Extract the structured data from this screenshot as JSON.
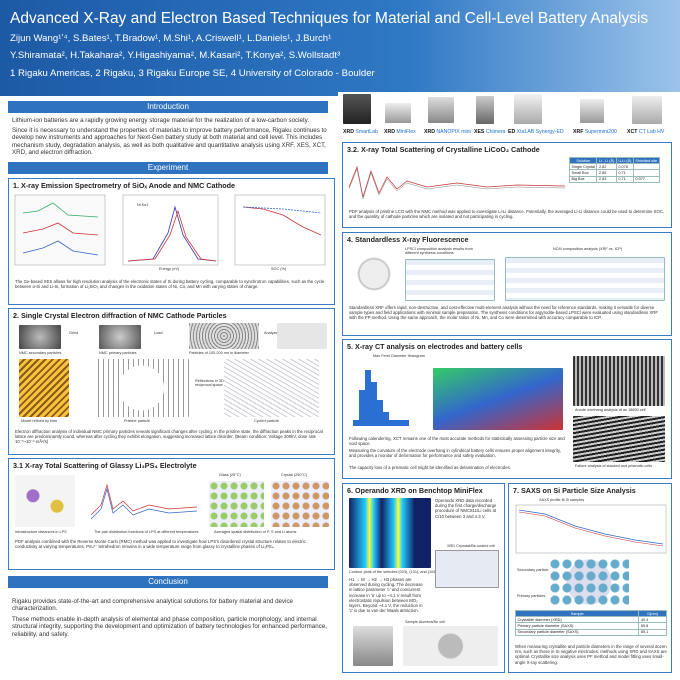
{
  "header": {
    "title": "Advanced X-Ray and Electron Based Techniques for Material and Cell-Level Battery Analysis",
    "authors": [
      "Zijun Wang¹ʼ⁴, S.Bates¹, T.Bradow¹, M.Shi¹, A.Criswell¹, L.Daniels¹, J.Burch¹",
      "Y.Shiramata², H.Takahara², Y.Higashiyama², M.Kasari², T.Konya², S.Wollstadt³"
    ],
    "affiliations": "1 Rigaku Americas, 2 Rigaku, 3 Rigaku Europe SE, 4 University of Colorado - Boulder"
  },
  "instruments": [
    {
      "kind": "XRD",
      "name": "SmartLab"
    },
    {
      "kind": "XRD",
      "name": "MiniFlex"
    },
    {
      "kind": "XRD",
      "name": "NANOPIX mini"
    },
    {
      "kind": "XES",
      "name": "Chimera"
    },
    {
      "kind": "ED",
      "name": "XtaLAB Synergy-ED"
    },
    {
      "kind": "XRF",
      "name": "Supermini200"
    },
    {
      "kind": "XCT",
      "name": "CT Lab HV"
    }
  ],
  "introduction": {
    "heading": "Introduction",
    "paragraphs": [
      "Lithium-ion batteries are a rapidly growing energy storage material for the realization of a low-carbon society.",
      "Since it is necessary to understand the properties of materials to improve battery performance, Rigaku continues to develop new instruments and approaches for Next-Gen battery study at both material and cell level. This includes mechanism study, degradation analysis, as well as both qualitative and quantitative analysis using XRF, XES, XCT, XRD, and electron diffraction."
    ]
  },
  "experiment": {
    "heading": "Experiment"
  },
  "sections": [
    {
      "title": "1. X-ray Emission Spectrometry of SiOₓ Anode and NMC Cathode",
      "labels": [
        "Ni Kα1",
        "Energy (eV)",
        "SOC (%)"
      ],
      "caption": "The Ge-based XES allows for high resolution analysis of the electronic states of Si during battery cycling, comparable to synchrotron capabilities, such as the cycle between α-Si and Li-Si, formation of Li₂SiO₃ and changes in the oxidation states of Ni, Co, and Mn with varying states of charge."
    },
    {
      "title": "2. Single Crystal Electron diffraction of NMC Cathode Particles",
      "labels": [
        "NMC secondary particles",
        "NMC primary particles",
        "Particles of 100-200 nm in diameter",
        "Grind",
        "Load",
        "Analyze",
        "Model refined by time",
        "Pristine particle",
        "Cycled particle",
        "Reflections in 3D reciprocal space"
      ],
      "caption": "Electron diffraction analysis of individual NMC primary particles reveals significant changes after cycling. In the pristine state, the diffraction peaks in the reciprocal lattice are predominantly round, whereas after cycling they exhibit elongation, suggesting increased lattice disorder. (Beam condition: Voltage 200kV, dose rate 10⁻³~10⁻² e/Å²/s)"
    },
    {
      "title": "3.1 X-ray Total Scattering of Glassy Li₃PS₄ Electrolyte",
      "labels": [
        "Glass (25°C)",
        "Crystal (250°C)",
        "Intrastructure distances in LPS",
        "The pair distribution functions of LPS at different temperatures",
        "Averaged spatial distribution of P, S and Li atoms"
      ],
      "caption": "PDF analysis combined with the Reverse Monte Carlo (RMC) method was applied to investigate how LPS's disordered crystal structure relates to electric conductivity at varying temperatures. PS₄³⁻ tetrahedron remains in a wide temperature range from glassy to crystalline phases of Li₃PS₄."
    },
    {
      "title": "3.2. X-ray Total Scattering of Crystalline LiCoO₂ Cathode",
      "table": [
        [
          "Solution",
          "Li - Li (Å)",
          "U-Li (Å)",
          "Shielded site"
        ],
        [
          "Single Crystal",
          "2.82",
          "0.078",
          ""
        ],
        [
          "Small Box",
          "2.85",
          "0.71",
          ""
        ],
        [
          "Big Box",
          "2.83",
          "0.71",
          "0.077"
        ]
      ],
      "caption": "PDF analysis of pristine LCO with the NMC method was applied to investigate Li-Li distance. Potentially, the averaged Li-Li distance could be used to determine SOC, and the quantity of cathode particles which are isolated and not participating in cycling."
    },
    {
      "title": "4. Standardless X-ray Fluorescence",
      "labels": [
        "LPSCl composition analysis results from different synthesis conditions",
        "NCM composition analysis (XRF vs. ICP)"
      ],
      "caption": "Standardless XRF offers rapid, non-destructive, and cost-effective multi-element analysis without the need for reference standards, making it versatile for diverse sample types and field applications with minimal sample preparation. The synthesis conditions for argyrodite-based LPSCl were evaluated using standardless XRF with the FP method. Using the same approach, the molar ratios of Ni, Mn, and Co were determined with accuracy comparable to ICP."
    },
    {
      "title": "5. X-ray CT analysis on electrodes and battery cells",
      "labels": [
        "Max Feret Diameter Histogram",
        "Anode overhang analysis of an 18650 cell",
        "Failure analysis of stacked and prismatic cells"
      ],
      "paragraphs": [
        "Following calendering, XCT remains one of the most accurate methods for statistically assessing particle size and void space.",
        "Measuring the curvature of the electrode overhang in cylindrical battery cells ensures proper alignment integrity, and provides a monitor of deformation for performance and safety evaluation.",
        "The capacity loss of a prismatic cell might be identified as delamination of electrodes."
      ]
    },
    {
      "title": "6. Operando XRD on Benchtop MiniFlex",
      "labels": [
        "Operando XRD data recorded during the first charge/discharge procedure of NMC811/Li cells at C/10 between 3 and 4.3 V.",
        "Contour plots of the selected (003), (101), and (104) reflections.",
        "XRD Cryostat/Be-sealed cell",
        "Sample Alumina/Be cell"
      ],
      "caption": "H1 → M → H2 → H3 phases are observed during cycling. The decrease in lattice parameter 'c' and concurrent increase in 'a' up to ~4.1 V result from electrostatic repulsion between MO₂ layers. Beyond ~4.1 V, the reduction in 'c' is due to van der Waals attraction."
    },
    {
      "title": "7. SAXS on Si Particle Size Analysis",
      "labels": [
        "SAXS profile fit Si samples",
        "Secondary particle",
        "Primary particles"
      ],
      "table": [
        [
          "Sample",
          "D(nm)"
        ],
        [
          "Crystallite diameter (XRD)",
          "40.4"
        ],
        [
          "Primary particle diameter (SAXS)",
          "59.8"
        ],
        [
          "Secondary particle diameter (SAXS)",
          "85.1"
        ]
      ],
      "caption": "When measuring crystallite and particle diameters in the range of several dozen nm, such as those in Si negative electrodes, methods using XRD and SAXS are optimal. Crystallite size analysis uses PF method and model fitting uses small-angle X-ray scattering."
    }
  ],
  "conclusion": {
    "heading": "Conclusion",
    "paragraphs": [
      "Rigaku provides state-of-the-art and comprehensive analytical solutions for battery material and device characterization.",
      "These methods enable in-depth analysis of elemental and phase composition, particle morphology, and internal structural integrity, supporting the development and optimization of battery technologies for enhanced performance, reliability, and safety."
    ]
  }
}
